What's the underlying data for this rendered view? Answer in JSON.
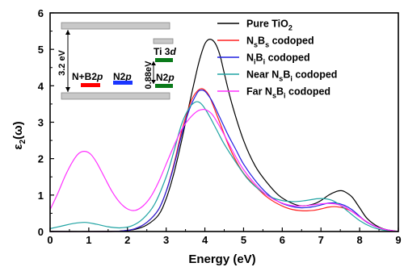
{
  "chart_data": {
    "type": "line",
    "xlabel": "Energy (eV)",
    "ylabel": "ε2(ω)",
    "xlim": [
      0,
      9
    ],
    "ylim": [
      0,
      6
    ],
    "xticks": [
      0,
      1,
      2,
      3,
      4,
      5,
      6,
      7,
      8,
      9
    ],
    "yticks": [
      0,
      1,
      2,
      3,
      4,
      5,
      6
    ],
    "legend_position": "top-right",
    "series": [
      {
        "name": "Pure TiO2",
        "color": "#000000",
        "x": [
          0,
          1.5,
          1.9,
          2.2,
          2.5,
          2.8,
          3.0,
          3.2,
          3.4,
          3.6,
          3.8,
          3.9,
          4.0,
          4.1,
          4.2,
          4.3,
          4.4,
          4.5,
          4.7,
          5.0,
          5.3,
          5.6,
          5.9,
          6.2,
          6.5,
          6.8,
          7.0,
          7.2,
          7.4,
          7.5,
          7.6,
          7.8,
          8.0,
          8.2,
          8.5,
          8.8,
          9.0
        ],
        "y": [
          0,
          0,
          0.02,
          0.06,
          0.18,
          0.45,
          0.9,
          1.6,
          2.5,
          3.5,
          4.45,
          4.85,
          5.15,
          5.27,
          5.25,
          5.1,
          4.8,
          4.35,
          3.5,
          2.5,
          1.8,
          1.35,
          1.0,
          0.8,
          0.7,
          0.75,
          0.85,
          1.0,
          1.1,
          1.12,
          1.1,
          0.95,
          0.65,
          0.35,
          0.12,
          0.02,
          0
        ]
      },
      {
        "name": "NsBs codoped",
        "color": "#ff2020",
        "x": [
          0,
          1.5,
          1.9,
          2.2,
          2.5,
          2.8,
          3.0,
          3.2,
          3.4,
          3.6,
          3.7,
          3.8,
          3.9,
          4.0,
          4.1,
          4.2,
          4.4,
          4.6,
          4.8,
          5.0,
          5.3,
          5.6,
          5.9,
          6.2,
          6.5,
          6.8,
          7.0,
          7.2,
          7.4,
          7.6,
          7.8,
          8.0,
          8.2,
          8.5,
          8.8,
          9.0
        ],
        "y": [
          0,
          0,
          0.02,
          0.08,
          0.25,
          0.6,
          1.1,
          1.85,
          2.75,
          3.45,
          3.7,
          3.85,
          3.92,
          3.88,
          3.75,
          3.5,
          2.95,
          2.4,
          1.95,
          1.6,
          1.25,
          0.95,
          0.75,
          0.62,
          0.57,
          0.58,
          0.62,
          0.67,
          0.68,
          0.64,
          0.55,
          0.4,
          0.25,
          0.1,
          0.03,
          0
        ]
      },
      {
        "name": "NiBi codoped",
        "color": "#2020e0",
        "x": [
          0,
          1.5,
          1.9,
          2.2,
          2.5,
          2.8,
          3.0,
          3.2,
          3.4,
          3.6,
          3.8,
          3.9,
          4.0,
          4.1,
          4.2,
          4.4,
          4.6,
          4.8,
          5.0,
          5.3,
          5.6,
          5.9,
          6.2,
          6.5,
          6.8,
          7.0,
          7.2,
          7.4,
          7.6,
          7.8,
          8.0,
          8.2,
          8.5,
          8.8,
          9.0
        ],
        "y": [
          0,
          0,
          0.02,
          0.08,
          0.25,
          0.6,
          1.1,
          1.8,
          2.65,
          3.35,
          3.8,
          3.88,
          3.85,
          3.72,
          3.55,
          3.1,
          2.65,
          2.25,
          1.85,
          1.4,
          1.05,
          0.82,
          0.7,
          0.65,
          0.68,
          0.73,
          0.78,
          0.78,
          0.72,
          0.6,
          0.42,
          0.25,
          0.1,
          0.03,
          0
        ]
      },
      {
        "name": "Near NsBi codoped",
        "color": "#1fa3a3",
        "x": [
          0,
          0.3,
          0.6,
          0.9,
          1.2,
          1.5,
          1.8,
          2.1,
          2.4,
          2.7,
          3.0,
          3.2,
          3.4,
          3.6,
          3.75,
          3.85,
          3.95,
          4.1,
          4.3,
          4.5,
          4.8,
          5.1,
          5.4,
          5.7,
          6.0,
          6.3,
          6.6,
          6.9,
          7.1,
          7.3,
          7.5,
          7.7,
          8.0,
          8.3,
          8.6,
          9.0
        ],
        "y": [
          0.08,
          0.15,
          0.22,
          0.25,
          0.2,
          0.13,
          0.1,
          0.15,
          0.35,
          0.75,
          1.5,
          2.2,
          2.95,
          3.4,
          3.55,
          3.55,
          3.45,
          3.2,
          2.8,
          2.4,
          1.9,
          1.45,
          1.15,
          0.95,
          0.85,
          0.82,
          0.85,
          0.9,
          0.9,
          0.85,
          0.72,
          0.55,
          0.3,
          0.13,
          0.04,
          0
        ]
      },
      {
        "name": "Far NsBi codoped",
        "color": "#ff30ff",
        "x": [
          0,
          0.2,
          0.4,
          0.6,
          0.75,
          0.9,
          1.05,
          1.2,
          1.4,
          1.6,
          1.8,
          2.0,
          2.2,
          2.4,
          2.6,
          2.8,
          3.0,
          3.2,
          3.4,
          3.6,
          3.8,
          3.95,
          4.05,
          4.2,
          4.4,
          4.6,
          4.8,
          5.0,
          5.3,
          5.6,
          5.9,
          6.2,
          6.5,
          6.8,
          7.0,
          7.2,
          7.4,
          7.6,
          7.8,
          8.0,
          8.3,
          8.6,
          9.0
        ],
        "y": [
          0.6,
          1.05,
          1.55,
          1.95,
          2.15,
          2.2,
          2.12,
          1.9,
          1.5,
          1.1,
          0.8,
          0.62,
          0.58,
          0.7,
          0.95,
          1.35,
          1.85,
          2.35,
          2.8,
          3.1,
          3.3,
          3.35,
          3.33,
          3.2,
          2.85,
          2.45,
          2.05,
          1.7,
          1.3,
          1.0,
          0.82,
          0.72,
          0.7,
          0.73,
          0.76,
          0.77,
          0.75,
          0.68,
          0.55,
          0.4,
          0.2,
          0.07,
          0
        ]
      }
    ]
  },
  "axes": {
    "xlabel": "Energy (eV)",
    "ylabel_main": "ε",
    "ylabel_sub": "2",
    "ylabel_tail": "(ω)"
  },
  "legend": {
    "items": [
      {
        "main": "Pure TiO",
        "sub1": "2",
        "mid": "",
        "sub2": "",
        "tail": "",
        "color": "#000000"
      },
      {
        "main": "N",
        "sub1": "s",
        "mid": "B",
        "sub2": "s",
        "tail": " codoped",
        "color": "#ff2020"
      },
      {
        "main": "N",
        "sub1": "i",
        "mid": "B",
        "sub2": "i",
        "tail": " codoped",
        "color": "#2020e0"
      },
      {
        "main": "Near N",
        "sub1": "s",
        "mid": "B",
        "sub2": "i",
        "tail": " codoped",
        "color": "#1fa3a3"
      },
      {
        "main": "Far N",
        "sub1": "s",
        "mid": "B",
        "sub2": "i",
        "tail": " codoped",
        "color": "#ff30ff"
      }
    ]
  },
  "inset": {
    "gap_label": "3.2 eV",
    "gap2_label": "0.88eV",
    "nb_label": "N+B2",
    "nb_italic": "p",
    "n2p_label": "N2",
    "n2p_italic": "p",
    "ti_label": "Ti 3",
    "ti_italic": "d",
    "n2p_right_label": "N2",
    "n2p_right_italic": "p",
    "colors": {
      "band": "#c8c8c8",
      "nb": "#ff0000",
      "n2p": "#1a35ff",
      "green": "#0a7a1a"
    }
  }
}
